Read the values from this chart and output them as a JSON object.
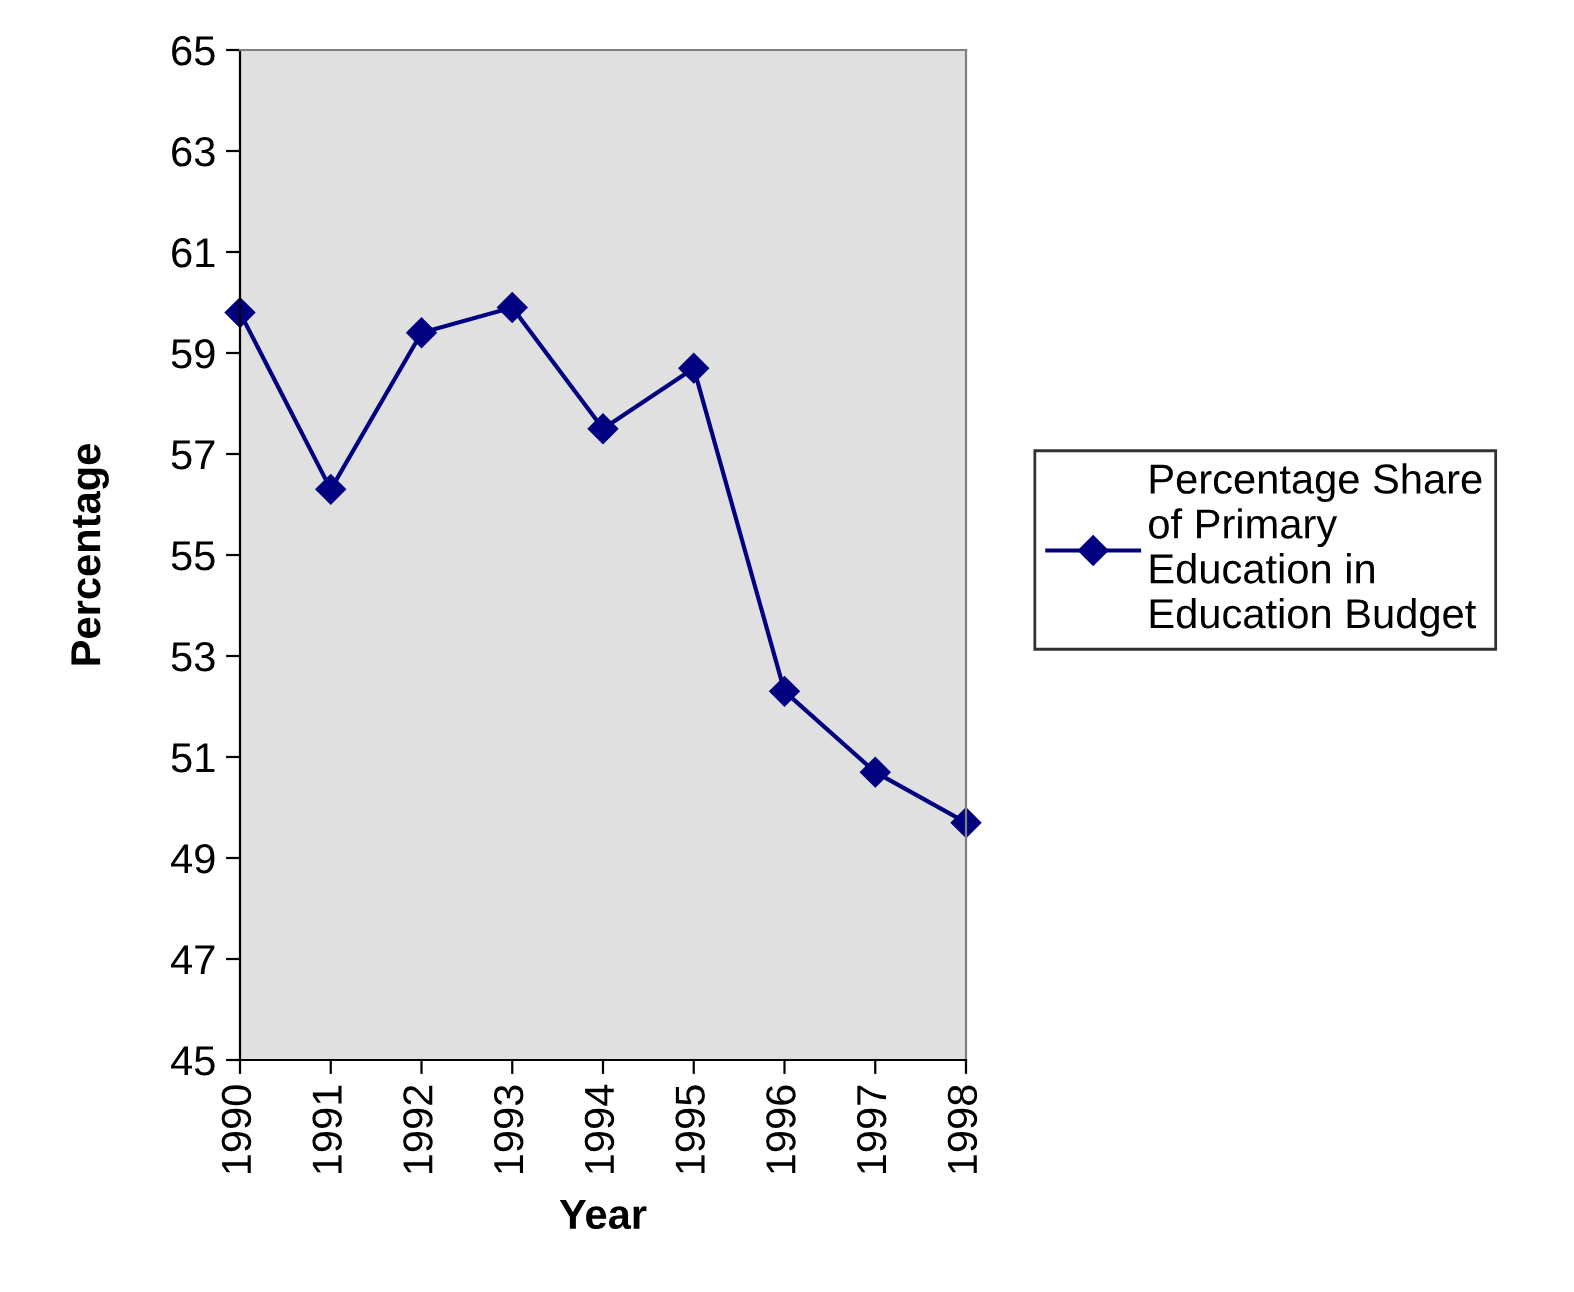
{
  "chart_data": {
    "type": "line",
    "xlabel": "Year",
    "ylabel": "Percentage",
    "categories": [
      "1990",
      "1991",
      "1992",
      "1993",
      "1994",
      "1995",
      "1996",
      "1997",
      "1998"
    ],
    "series": [
      {
        "name": "Percentage Share\nof Primary\nEducation in\nEducation Budget",
        "color": "#000080",
        "values": [
          59.8,
          56.3,
          59.4,
          59.9,
          57.5,
          58.7,
          52.3,
          50.7,
          49.7
        ]
      }
    ],
    "ylim": [
      45,
      65
    ],
    "yticks": [
      45,
      47,
      49,
      51,
      53,
      55,
      57,
      59,
      61,
      63,
      65
    ],
    "marker": "diamond",
    "line_style": "solid",
    "grid": false,
    "legend": "right"
  }
}
